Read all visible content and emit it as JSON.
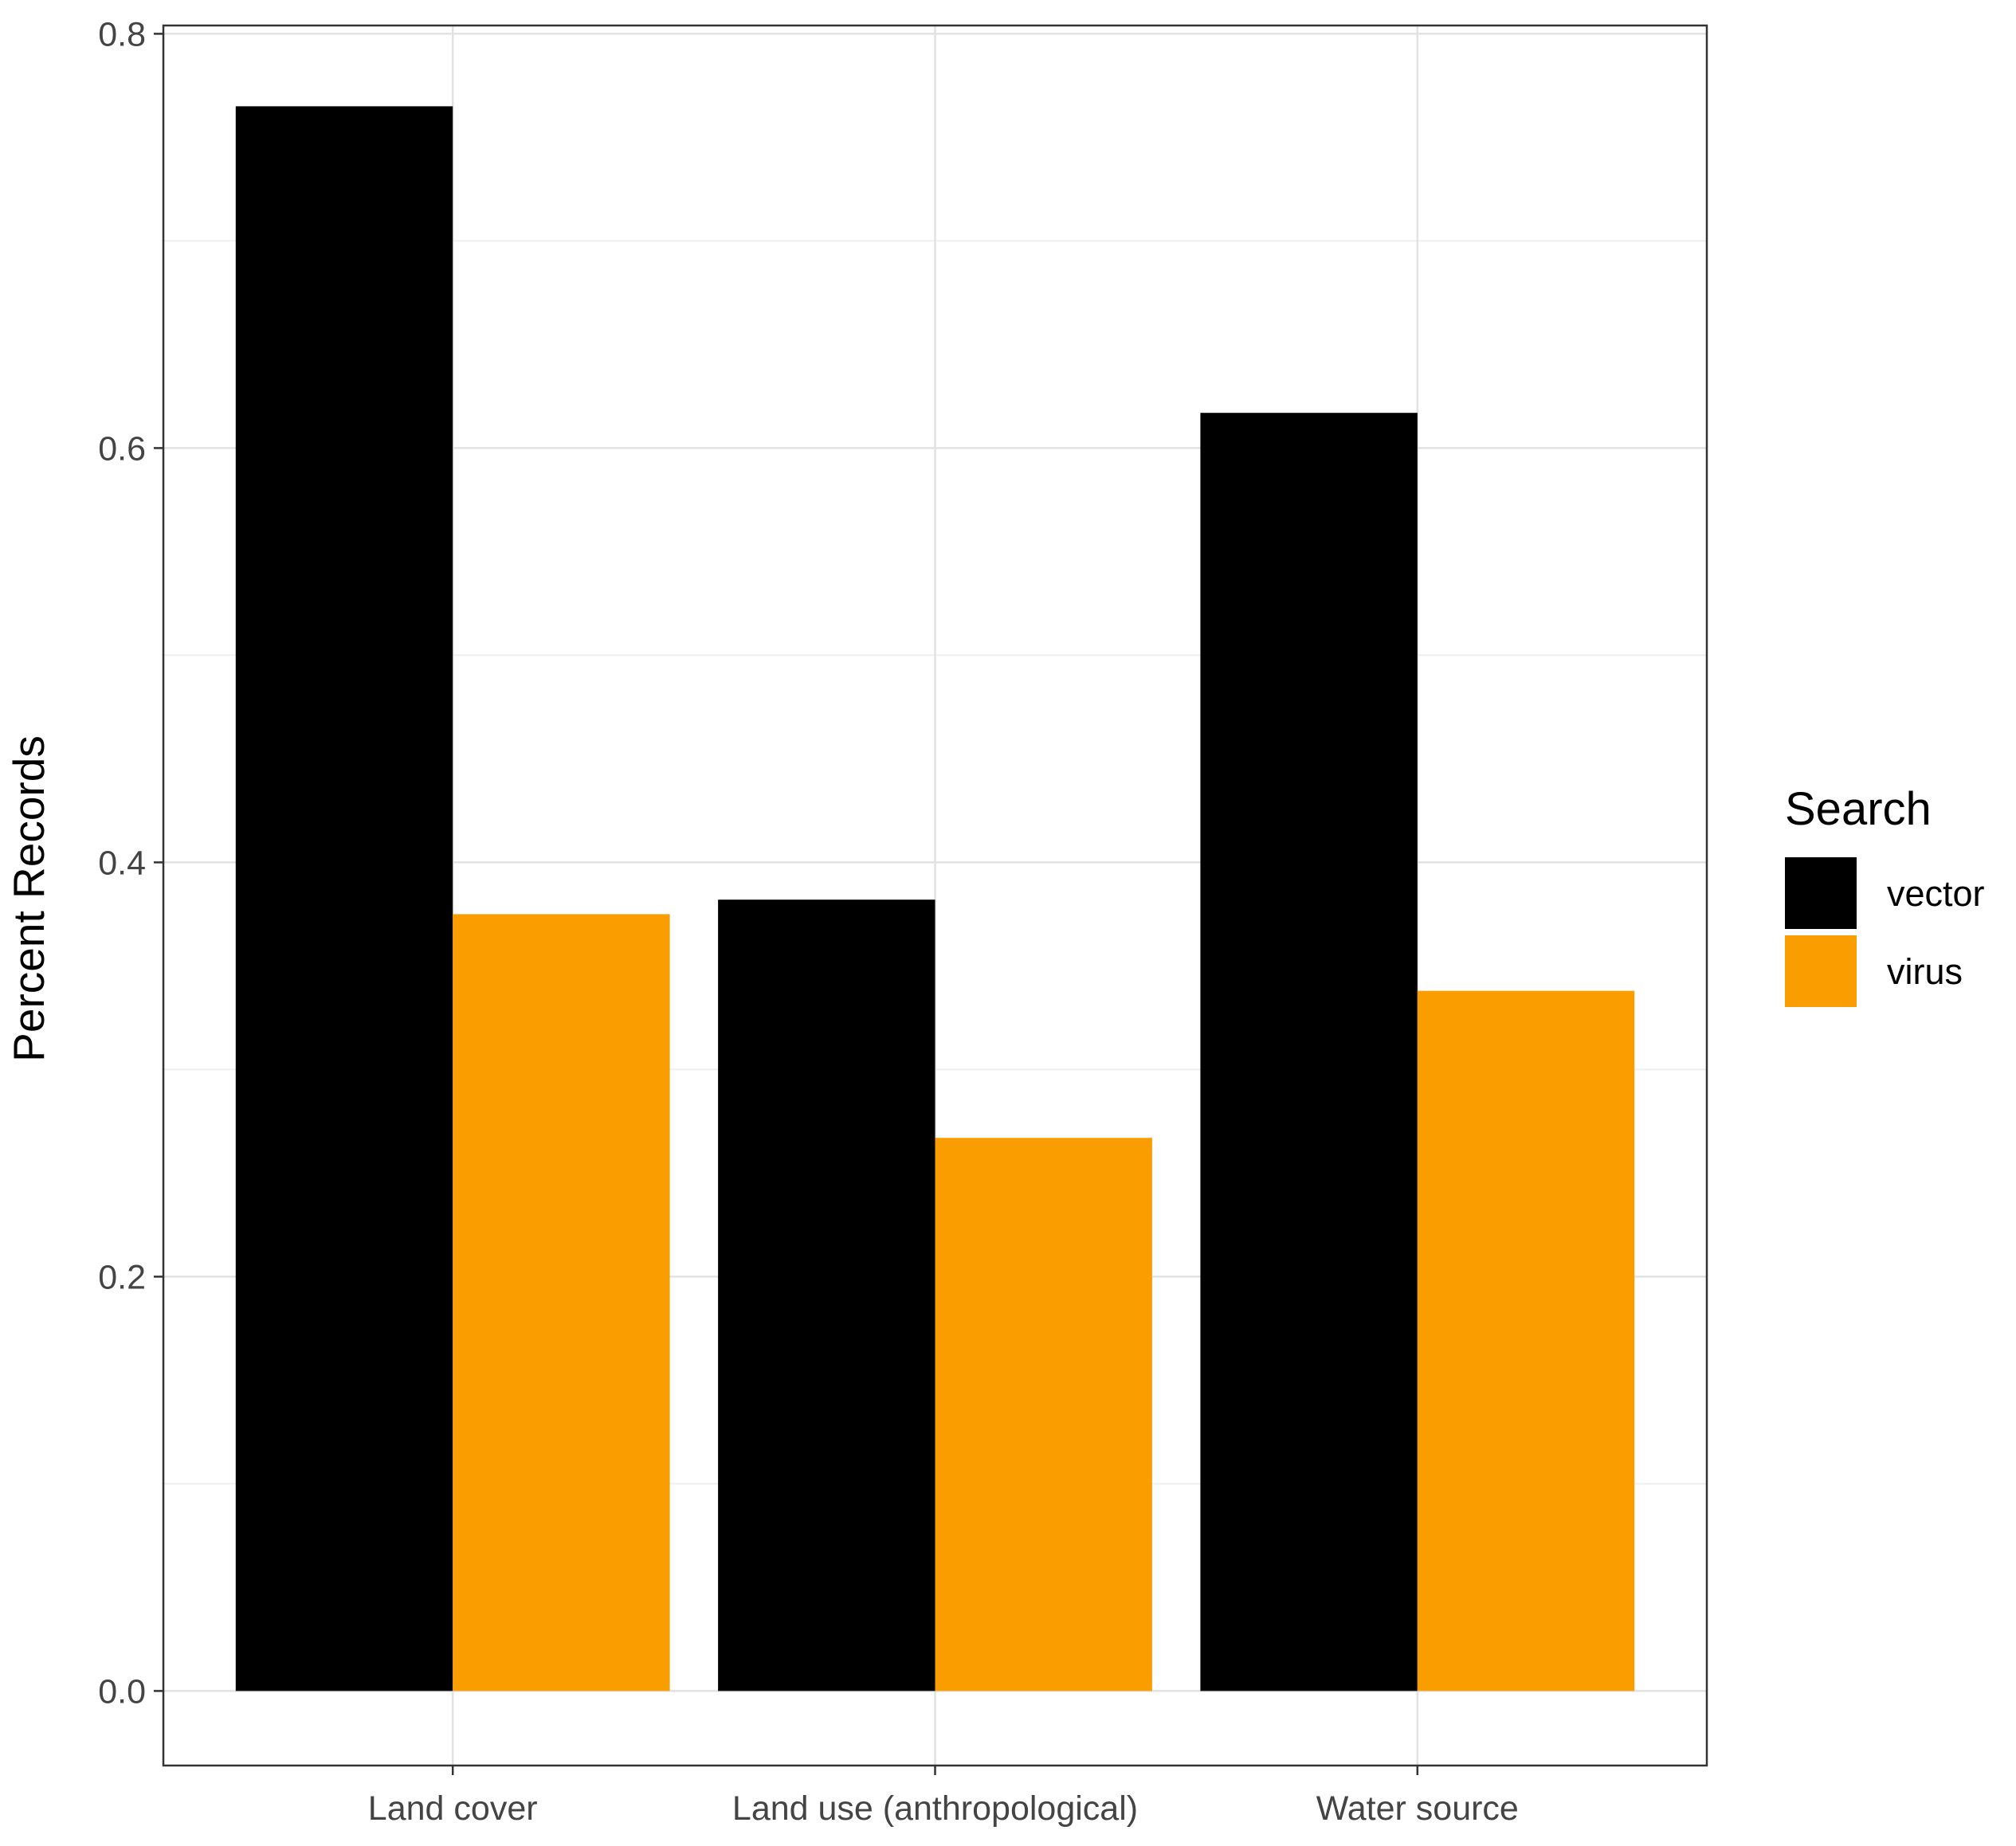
{
  "chart_data": {
    "type": "bar",
    "title": "",
    "xlabel": "",
    "ylabel": "Percent Records",
    "categories": [
      "Land cover",
      "Land use (anthropological)",
      "Water source"
    ],
    "series": [
      {
        "name": "vector",
        "color": "#000000",
        "values": [
          0.765,
          0.382,
          0.617
        ]
      },
      {
        "name": "virus",
        "color": "#f99d00",
        "values": [
          0.375,
          0.267,
          0.338
        ]
      }
    ],
    "ylim": [
      -0.036,
      0.804
    ],
    "yticks": [
      0.0,
      0.2,
      0.4,
      0.6,
      0.8
    ],
    "ytick_labels": [
      "0.0",
      "0.2",
      "0.4",
      "0.6",
      "0.8"
    ],
    "grid": true,
    "legend": {
      "title": "Search",
      "placement": "right"
    },
    "theme": "bw"
  }
}
